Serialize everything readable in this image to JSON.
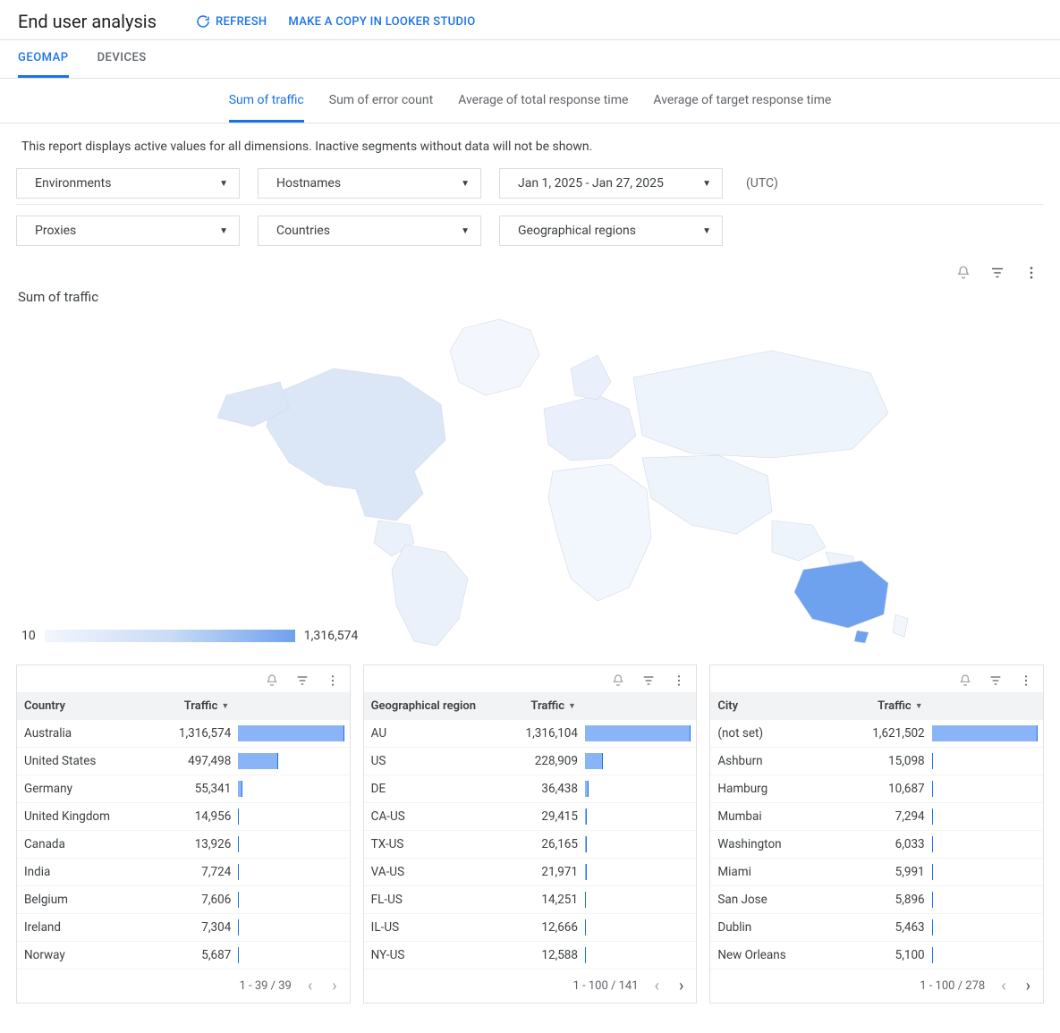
{
  "header": {
    "title": "End user analysis",
    "refresh": "REFRESH",
    "looker": "MAKE A COPY IN LOOKER STUDIO"
  },
  "tabs_primary": {
    "geomap": "GEOMAP",
    "devices": "DEVICES",
    "active": "geomap"
  },
  "tabs_secondary": {
    "items": [
      {
        "key": "traffic",
        "label": "Sum of traffic"
      },
      {
        "key": "errors",
        "label": "Sum of error count"
      },
      {
        "key": "total_rt",
        "label": "Average of total response time"
      },
      {
        "key": "target_rt",
        "label": "Average of target response time"
      }
    ],
    "active": "traffic"
  },
  "note": "This report displays active values for all dimensions. Inactive segments without data will not be shown.",
  "filters": {
    "row1": [
      {
        "label": "Environments"
      },
      {
        "label": "Hostnames"
      },
      {
        "label": "Jan 1, 2025 - Jan 27, 2025"
      }
    ],
    "utc": "(UTC)",
    "row2": [
      {
        "label": "Proxies"
      },
      {
        "label": "Countries"
      },
      {
        "label": "Geographical regions"
      }
    ]
  },
  "chart": {
    "title": "Sum of traffic",
    "legend_min": "10",
    "legend_max": "1,316,574",
    "map_colors": {
      "land_light": "#e9f0fb",
      "land_lighter": "#f3f7fd",
      "stroke": "#d2d9e3",
      "highlight": "#6ea1ee",
      "na": "#dbe6f7",
      "sa": "#eaf1fb",
      "eu": "#e9f0fb",
      "asia": "#eef4fc",
      "africa": "#f2f6fd",
      "au": "#6ea1ee"
    }
  },
  "tables": {
    "bar_color": "#8ab4f8",
    "bar_edge": "#1a73e8",
    "country": {
      "dim_header": "Country",
      "metric_header": "Traffic",
      "max": 1316574,
      "rows": [
        {
          "name": "Australia",
          "value": 1316574,
          "display": "1,316,574"
        },
        {
          "name": "United States",
          "value": 497498,
          "display": "497,498"
        },
        {
          "name": "Germany",
          "value": 55341,
          "display": "55,341"
        },
        {
          "name": "United Kingdom",
          "value": 14956,
          "display": "14,956"
        },
        {
          "name": "Canada",
          "value": 13926,
          "display": "13,926"
        },
        {
          "name": "India",
          "value": 7724,
          "display": "7,724"
        },
        {
          "name": "Belgium",
          "value": 7606,
          "display": "7,606"
        },
        {
          "name": "Ireland",
          "value": 7304,
          "display": "7,304"
        },
        {
          "name": "Norway",
          "value": 5687,
          "display": "5,687"
        }
      ],
      "pager": "1 - 39 / 39",
      "prev_enabled": false,
      "next_enabled": false
    },
    "region": {
      "dim_header": "Geographical region",
      "metric_header": "Traffic",
      "max": 1316104,
      "rows": [
        {
          "name": "AU",
          "value": 1316104,
          "display": "1,316,104"
        },
        {
          "name": "US",
          "value": 228909,
          "display": "228,909"
        },
        {
          "name": "DE",
          "value": 36438,
          "display": "36,438"
        },
        {
          "name": "CA-US",
          "value": 29415,
          "display": "29,415"
        },
        {
          "name": "TX-US",
          "value": 26165,
          "display": "26,165"
        },
        {
          "name": "VA-US",
          "value": 21971,
          "display": "21,971"
        },
        {
          "name": "FL-US",
          "value": 14251,
          "display": "14,251"
        },
        {
          "name": "IL-US",
          "value": 12666,
          "display": "12,666"
        },
        {
          "name": "NY-US",
          "value": 12588,
          "display": "12,588"
        }
      ],
      "pager": "1 - 100 / 141",
      "prev_enabled": false,
      "next_enabled": true
    },
    "city": {
      "dim_header": "City",
      "metric_header": "Traffic",
      "max": 1621502,
      "rows": [
        {
          "name": "(not set)",
          "value": 1621502,
          "display": "1,621,502"
        },
        {
          "name": "Ashburn",
          "value": 15098,
          "display": "15,098"
        },
        {
          "name": "Hamburg",
          "value": 10687,
          "display": "10,687"
        },
        {
          "name": "Mumbai",
          "value": 7294,
          "display": "7,294"
        },
        {
          "name": "Washington",
          "value": 6033,
          "display": "6,033"
        },
        {
          "name": "Miami",
          "value": 5991,
          "display": "5,991"
        },
        {
          "name": "San Jose",
          "value": 5896,
          "display": "5,896"
        },
        {
          "name": "Dublin",
          "value": 5463,
          "display": "5,463"
        },
        {
          "name": "New Orleans",
          "value": 5100,
          "display": "5,100"
        }
      ],
      "pager": "1 - 100 / 278",
      "prev_enabled": false,
      "next_enabled": true
    }
  }
}
